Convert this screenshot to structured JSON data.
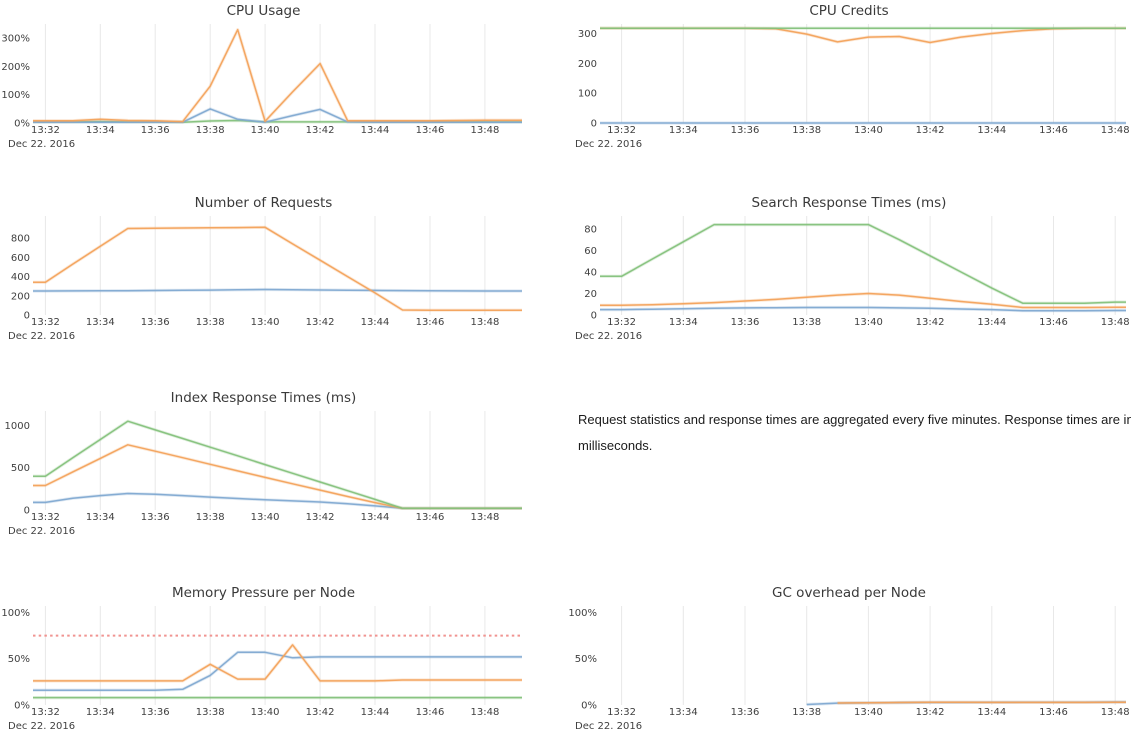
{
  "page": {
    "note": "Request statistics and response times are aggregated every five minutes. Response times are in milliseconds.",
    "date_label": "Dec 22. 2016"
  },
  "colors": {
    "blue": "#7fa9d1",
    "orange": "#f3a25b",
    "green": "#84c17b",
    "red": "#ef8e8b",
    "grid": "#e8e8e8",
    "tick_text": "#3f3f3f",
    "title_text": "#3a3a3a"
  },
  "chart_data": [
    {
      "type": "line",
      "title": "CPU Usage",
      "xlim": [
        31.55,
        49.35
      ],
      "ylim": [
        0,
        350
      ],
      "x_ticks": {
        "values": [
          32,
          34,
          36,
          38,
          40,
          42,
          44,
          46,
          48
        ],
        "labels": [
          "13:32",
          "13:34",
          "13:36",
          "13:38",
          "13:40",
          "13:42",
          "13:44",
          "13:46",
          "13:48"
        ]
      },
      "y_ticks": {
        "values": [
          0,
          100,
          200,
          300
        ],
        "labels": [
          "0%",
          "100%",
          "200%",
          "300%"
        ]
      },
      "date_label": "Dec 22. 2016",
      "series": [
        {
          "name": "node-green",
          "color": "green",
          "x": [
            32,
            33,
            34,
            35,
            36,
            37,
            38,
            39,
            40,
            41,
            42,
            43,
            44,
            45,
            46,
            47,
            48
          ],
          "y": [
            4,
            4,
            5,
            4,
            4,
            3,
            7,
            9,
            4,
            4,
            4,
            4,
            4,
            4,
            4,
            4,
            4
          ]
        },
        {
          "name": "node-blue",
          "color": "blue",
          "x": [
            32,
            33,
            34,
            35,
            36,
            37,
            38,
            39,
            40,
            41,
            42,
            43,
            44,
            45,
            46,
            47,
            48
          ],
          "y": [
            3,
            3,
            3,
            3,
            3,
            3,
            50,
            13,
            3,
            26,
            48,
            4,
            3,
            3,
            3,
            3,
            3
          ]
        },
        {
          "name": "node-orange",
          "color": "orange",
          "x": [
            32,
            33,
            34,
            35,
            36,
            37,
            38,
            39,
            40,
            41,
            42,
            43,
            44,
            45,
            46,
            47,
            48
          ],
          "y": [
            8,
            8,
            13,
            9,
            8,
            5,
            130,
            330,
            6,
            110,
            210,
            8,
            8,
            8,
            8,
            9,
            10
          ]
        }
      ]
    },
    {
      "type": "line",
      "title": "CPU Credits",
      "xlim": [
        31.3,
        48.35
      ],
      "ylim": [
        0,
        332
      ],
      "x_ticks": {
        "values": [
          32,
          34,
          36,
          38,
          40,
          42,
          44,
          46,
          48
        ],
        "labels": [
          "13:32",
          "13:34",
          "13:36",
          "13:38",
          "13:40",
          "13:42",
          "13:44",
          "13:46",
          "13:48"
        ]
      },
      "y_ticks": {
        "values": [
          0,
          100,
          200,
          300
        ],
        "labels": [
          "0",
          "100",
          "200",
          "300"
        ]
      },
      "date_label": "Dec 22. 2016",
      "series": [
        {
          "name": "node-blue",
          "color": "blue",
          "x": [
            32,
            33,
            34,
            35,
            36,
            37,
            38,
            39,
            40,
            41,
            42,
            43,
            44,
            45,
            46,
            47,
            48
          ],
          "y": [
            0,
            0,
            0,
            0,
            0,
            0,
            0,
            0,
            0,
            0,
            0,
            0,
            0,
            0,
            0,
            0,
            0
          ]
        },
        {
          "name": "node-orange",
          "color": "orange",
          "x": [
            32,
            33,
            34,
            35,
            36,
            37,
            38,
            39,
            40,
            41,
            42,
            43,
            44,
            45,
            46,
            47,
            48
          ],
          "y": [
            318,
            318,
            318,
            318,
            318,
            316,
            298,
            272,
            288,
            290,
            270,
            288,
            300,
            310,
            316,
            318,
            318
          ]
        },
        {
          "name": "node-green",
          "color": "green",
          "x": [
            32,
            33,
            34,
            35,
            36,
            37,
            38,
            39,
            40,
            41,
            42,
            43,
            44,
            45,
            46,
            47,
            48
          ],
          "y": [
            318,
            318,
            318,
            318,
            318,
            318,
            318,
            318,
            318,
            318,
            318,
            318,
            318,
            318,
            318,
            318,
            318
          ]
        }
      ]
    },
    {
      "type": "line",
      "title": "Number of Requests",
      "xlim": [
        31.55,
        49.35
      ],
      "ylim": [
        0,
        1030
      ],
      "x_ticks": {
        "values": [
          32,
          34,
          36,
          38,
          40,
          42,
          44,
          46,
          48
        ],
        "labels": [
          "13:32",
          "13:34",
          "13:36",
          "13:38",
          "13:40",
          "13:42",
          "13:44",
          "13:46",
          "13:48"
        ]
      },
      "y_ticks": {
        "values": [
          0,
          200,
          400,
          600,
          800
        ],
        "labels": [
          "0",
          "200",
          "400",
          "600",
          "800"
        ]
      },
      "date_label": "Dec 22. 2016",
      "series": [
        {
          "name": "requests-blue",
          "color": "blue",
          "x": [
            32,
            33,
            34,
            35,
            36,
            37,
            38,
            39,
            40,
            41,
            42,
            43,
            44,
            45,
            46,
            47,
            48
          ],
          "y": [
            250,
            251,
            252,
            253,
            255,
            257,
            259,
            262,
            265,
            263,
            260,
            258,
            256,
            254,
            252,
            251,
            250
          ]
        },
        {
          "name": "requests-orange",
          "color": "orange",
          "x": [
            32,
            33,
            34,
            35,
            36,
            37,
            38,
            39,
            40,
            41,
            42,
            43,
            44,
            45,
            46,
            47,
            48
          ],
          "y": [
            340,
            530,
            715,
            900,
            903,
            905,
            907,
            909,
            912,
            740,
            570,
            400,
            230,
            52,
            50,
            50,
            50
          ]
        }
      ]
    },
    {
      "type": "line",
      "title": "Search Response Times (ms)",
      "xlim": [
        31.3,
        48.35
      ],
      "ylim": [
        0,
        92
      ],
      "x_ticks": {
        "values": [
          32,
          34,
          36,
          38,
          40,
          42,
          44,
          46,
          48
        ],
        "labels": [
          "13:32",
          "13:34",
          "13:36",
          "13:38",
          "13:40",
          "13:42",
          "13:44",
          "13:46",
          "13:48"
        ]
      },
      "y_ticks": {
        "values": [
          0,
          20,
          40,
          60,
          80
        ],
        "labels": [
          "0",
          "20",
          "40",
          "60",
          "80"
        ]
      },
      "date_label": "Dec 22. 2016",
      "series": [
        {
          "name": "search-blue",
          "color": "blue",
          "x": [
            32,
            33,
            34,
            35,
            36,
            37,
            38,
            39,
            40,
            41,
            42,
            43,
            44,
            45,
            46,
            47,
            48
          ],
          "y": [
            5,
            5.4,
            5.8,
            6.2,
            6.6,
            6.8,
            7,
            7,
            7,
            6.6,
            6.2,
            5.6,
            5,
            4,
            4,
            4,
            4.2
          ]
        },
        {
          "name": "search-orange",
          "color": "orange",
          "x": [
            32,
            33,
            34,
            35,
            36,
            37,
            38,
            39,
            40,
            41,
            42,
            43,
            44,
            45,
            46,
            47,
            48
          ],
          "y": [
            9,
            9.6,
            10.5,
            11.5,
            13,
            14.5,
            16.5,
            18.5,
            20,
            18.5,
            15.5,
            12.5,
            10,
            7,
            7,
            7,
            7.2
          ]
        },
        {
          "name": "search-green",
          "color": "green",
          "x": [
            32,
            33,
            34,
            35,
            36,
            37,
            38,
            39,
            40,
            41,
            42,
            43,
            44,
            45,
            46,
            47,
            48
          ],
          "y": [
            36,
            52,
            68,
            84,
            84,
            84,
            84,
            84,
            84,
            70,
            55,
            40,
            25,
            11,
            11,
            11,
            12
          ]
        }
      ]
    },
    {
      "type": "line",
      "title": "Index Response Times (ms)",
      "xlim": [
        31.55,
        49.35
      ],
      "ylim": [
        0,
        1170
      ],
      "x_ticks": {
        "values": [
          32,
          34,
          36,
          38,
          40,
          42,
          44,
          46,
          48
        ],
        "labels": [
          "13:32",
          "13:34",
          "13:36",
          "13:38",
          "13:40",
          "13:42",
          "13:44",
          "13:46",
          "13:48"
        ]
      },
      "y_ticks": {
        "values": [
          0,
          500,
          1000
        ],
        "labels": [
          "0",
          "500",
          "1000"
        ]
      },
      "date_label": "Dec 22. 2016",
      "series": [
        {
          "name": "index-blue",
          "color": "blue",
          "x": [
            32,
            33,
            34,
            35,
            36,
            37,
            38,
            39,
            40,
            41,
            42,
            43,
            44,
            45,
            46,
            47,
            48
          ],
          "y": [
            90,
            140,
            170,
            195,
            185,
            170,
            152,
            136,
            120,
            108,
            94,
            74,
            48,
            20,
            20,
            20,
            20
          ]
        },
        {
          "name": "index-orange",
          "color": "orange",
          "x": [
            32,
            33,
            34,
            35,
            36,
            37,
            38,
            39,
            40,
            41,
            42,
            43,
            44,
            45,
            46,
            47,
            48
          ],
          "y": [
            290,
            450,
            610,
            770,
            695,
            618,
            540,
            462,
            385,
            310,
            235,
            160,
            88,
            20,
            20,
            20,
            20
          ]
        },
        {
          "name": "index-green",
          "color": "green",
          "x": [
            32,
            33,
            34,
            35,
            36,
            37,
            38,
            39,
            40,
            41,
            42,
            43,
            44,
            45,
            46,
            47,
            48
          ],
          "y": [
            400,
            617,
            833,
            1050,
            947,
            845,
            742,
            640,
            537,
            434,
            331,
            228,
            125,
            20,
            20,
            20,
            20
          ]
        }
      ]
    },
    {
      "type": "line",
      "title": "Memory Pressure per Node",
      "xlim": [
        31.55,
        49.35
      ],
      "ylim": [
        0,
        107
      ],
      "x_ticks": {
        "values": [
          32,
          34,
          36,
          38,
          40,
          42,
          44,
          46,
          48
        ],
        "labels": [
          "13:32",
          "13:34",
          "13:36",
          "13:38",
          "13:40",
          "13:42",
          "13:44",
          "13:46",
          "13:48"
        ]
      },
      "y_ticks": {
        "values": [
          0,
          50,
          100
        ],
        "labels": [
          "0%",
          "50%",
          "100%"
        ]
      },
      "date_label": "Dec 22. 2016",
      "series": [
        {
          "name": "memory-green",
          "color": "green",
          "x": [
            32,
            33,
            34,
            35,
            36,
            37,
            38,
            39,
            40,
            41,
            42,
            43,
            44,
            45,
            46,
            47,
            48
          ],
          "y": [
            8,
            8,
            8,
            8,
            8,
            8,
            8,
            8,
            8,
            8,
            8,
            8,
            8,
            8,
            8,
            8,
            8
          ]
        },
        {
          "name": "memory-blue",
          "color": "blue",
          "x": [
            32,
            33,
            34,
            35,
            36,
            37,
            38,
            39,
            40,
            41,
            42,
            43,
            44,
            45,
            46,
            47,
            48
          ],
          "y": [
            16,
            16,
            16,
            16,
            16,
            17,
            32,
            57,
            57,
            51,
            52,
            52,
            52,
            52,
            52,
            52,
            52
          ]
        },
        {
          "name": "memory-orange",
          "color": "orange",
          "x": [
            32,
            33,
            34,
            35,
            36,
            37,
            38,
            39,
            40,
            41,
            42,
            43,
            44,
            45,
            46,
            47,
            48
          ],
          "y": [
            26,
            26,
            26,
            26,
            26,
            26,
            44,
            28,
            28,
            65,
            26,
            26,
            26,
            27,
            27,
            27,
            27
          ]
        },
        {
          "name": "memory-pressure-threshold",
          "color": "red",
          "dash": true,
          "x": [
            32,
            48
          ],
          "y": [
            75,
            75
          ]
        }
      ]
    },
    {
      "type": "line",
      "title": "GC overhead per Node",
      "xlim": [
        31.3,
        48.35
      ],
      "ylim": [
        0,
        107
      ],
      "x_ticks": {
        "values": [
          32,
          34,
          36,
          38,
          40,
          42,
          44,
          46,
          48
        ],
        "labels": [
          "13:32",
          "13:34",
          "13:36",
          "13:38",
          "13:40",
          "13:42",
          "13:44",
          "13:46",
          "13:48"
        ]
      },
      "y_ticks": {
        "values": [
          0,
          50,
          100
        ],
        "labels": [
          "0%",
          "50%",
          "100%"
        ]
      },
      "date_label": "Dec 22. 2016",
      "series": [
        {
          "name": "gc-blue",
          "color": "blue",
          "x": [
            38,
            39,
            40,
            41,
            42,
            43,
            44,
            45,
            46,
            47,
            48
          ],
          "y": [
            0.5,
            2,
            2.3,
            2.6,
            2.8,
            2.8,
            2.9,
            3,
            3,
            3,
            3.2
          ]
        },
        {
          "name": "gc-orange",
          "color": "orange",
          "x": [
            39,
            40,
            41,
            42,
            43,
            44,
            45,
            46,
            47,
            48
          ],
          "y": [
            2.2,
            2.4,
            2.7,
            2.9,
            2.9,
            2.8,
            2.8,
            2.8,
            2.8,
            3
          ]
        }
      ]
    }
  ]
}
